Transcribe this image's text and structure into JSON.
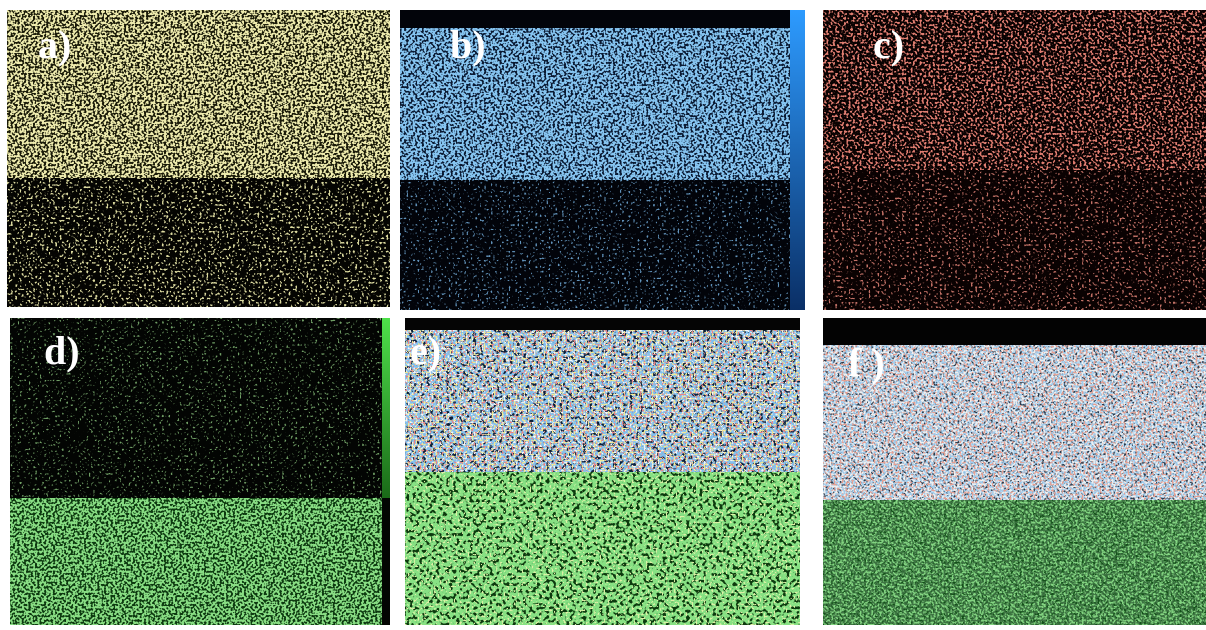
{
  "panels": [
    {
      "label": "a)"
    },
    {
      "label": "b)"
    },
    {
      "label": "c)"
    },
    {
      "label": "d)"
    },
    {
      "label": "e)"
    },
    {
      "label": "f )"
    }
  ]
}
